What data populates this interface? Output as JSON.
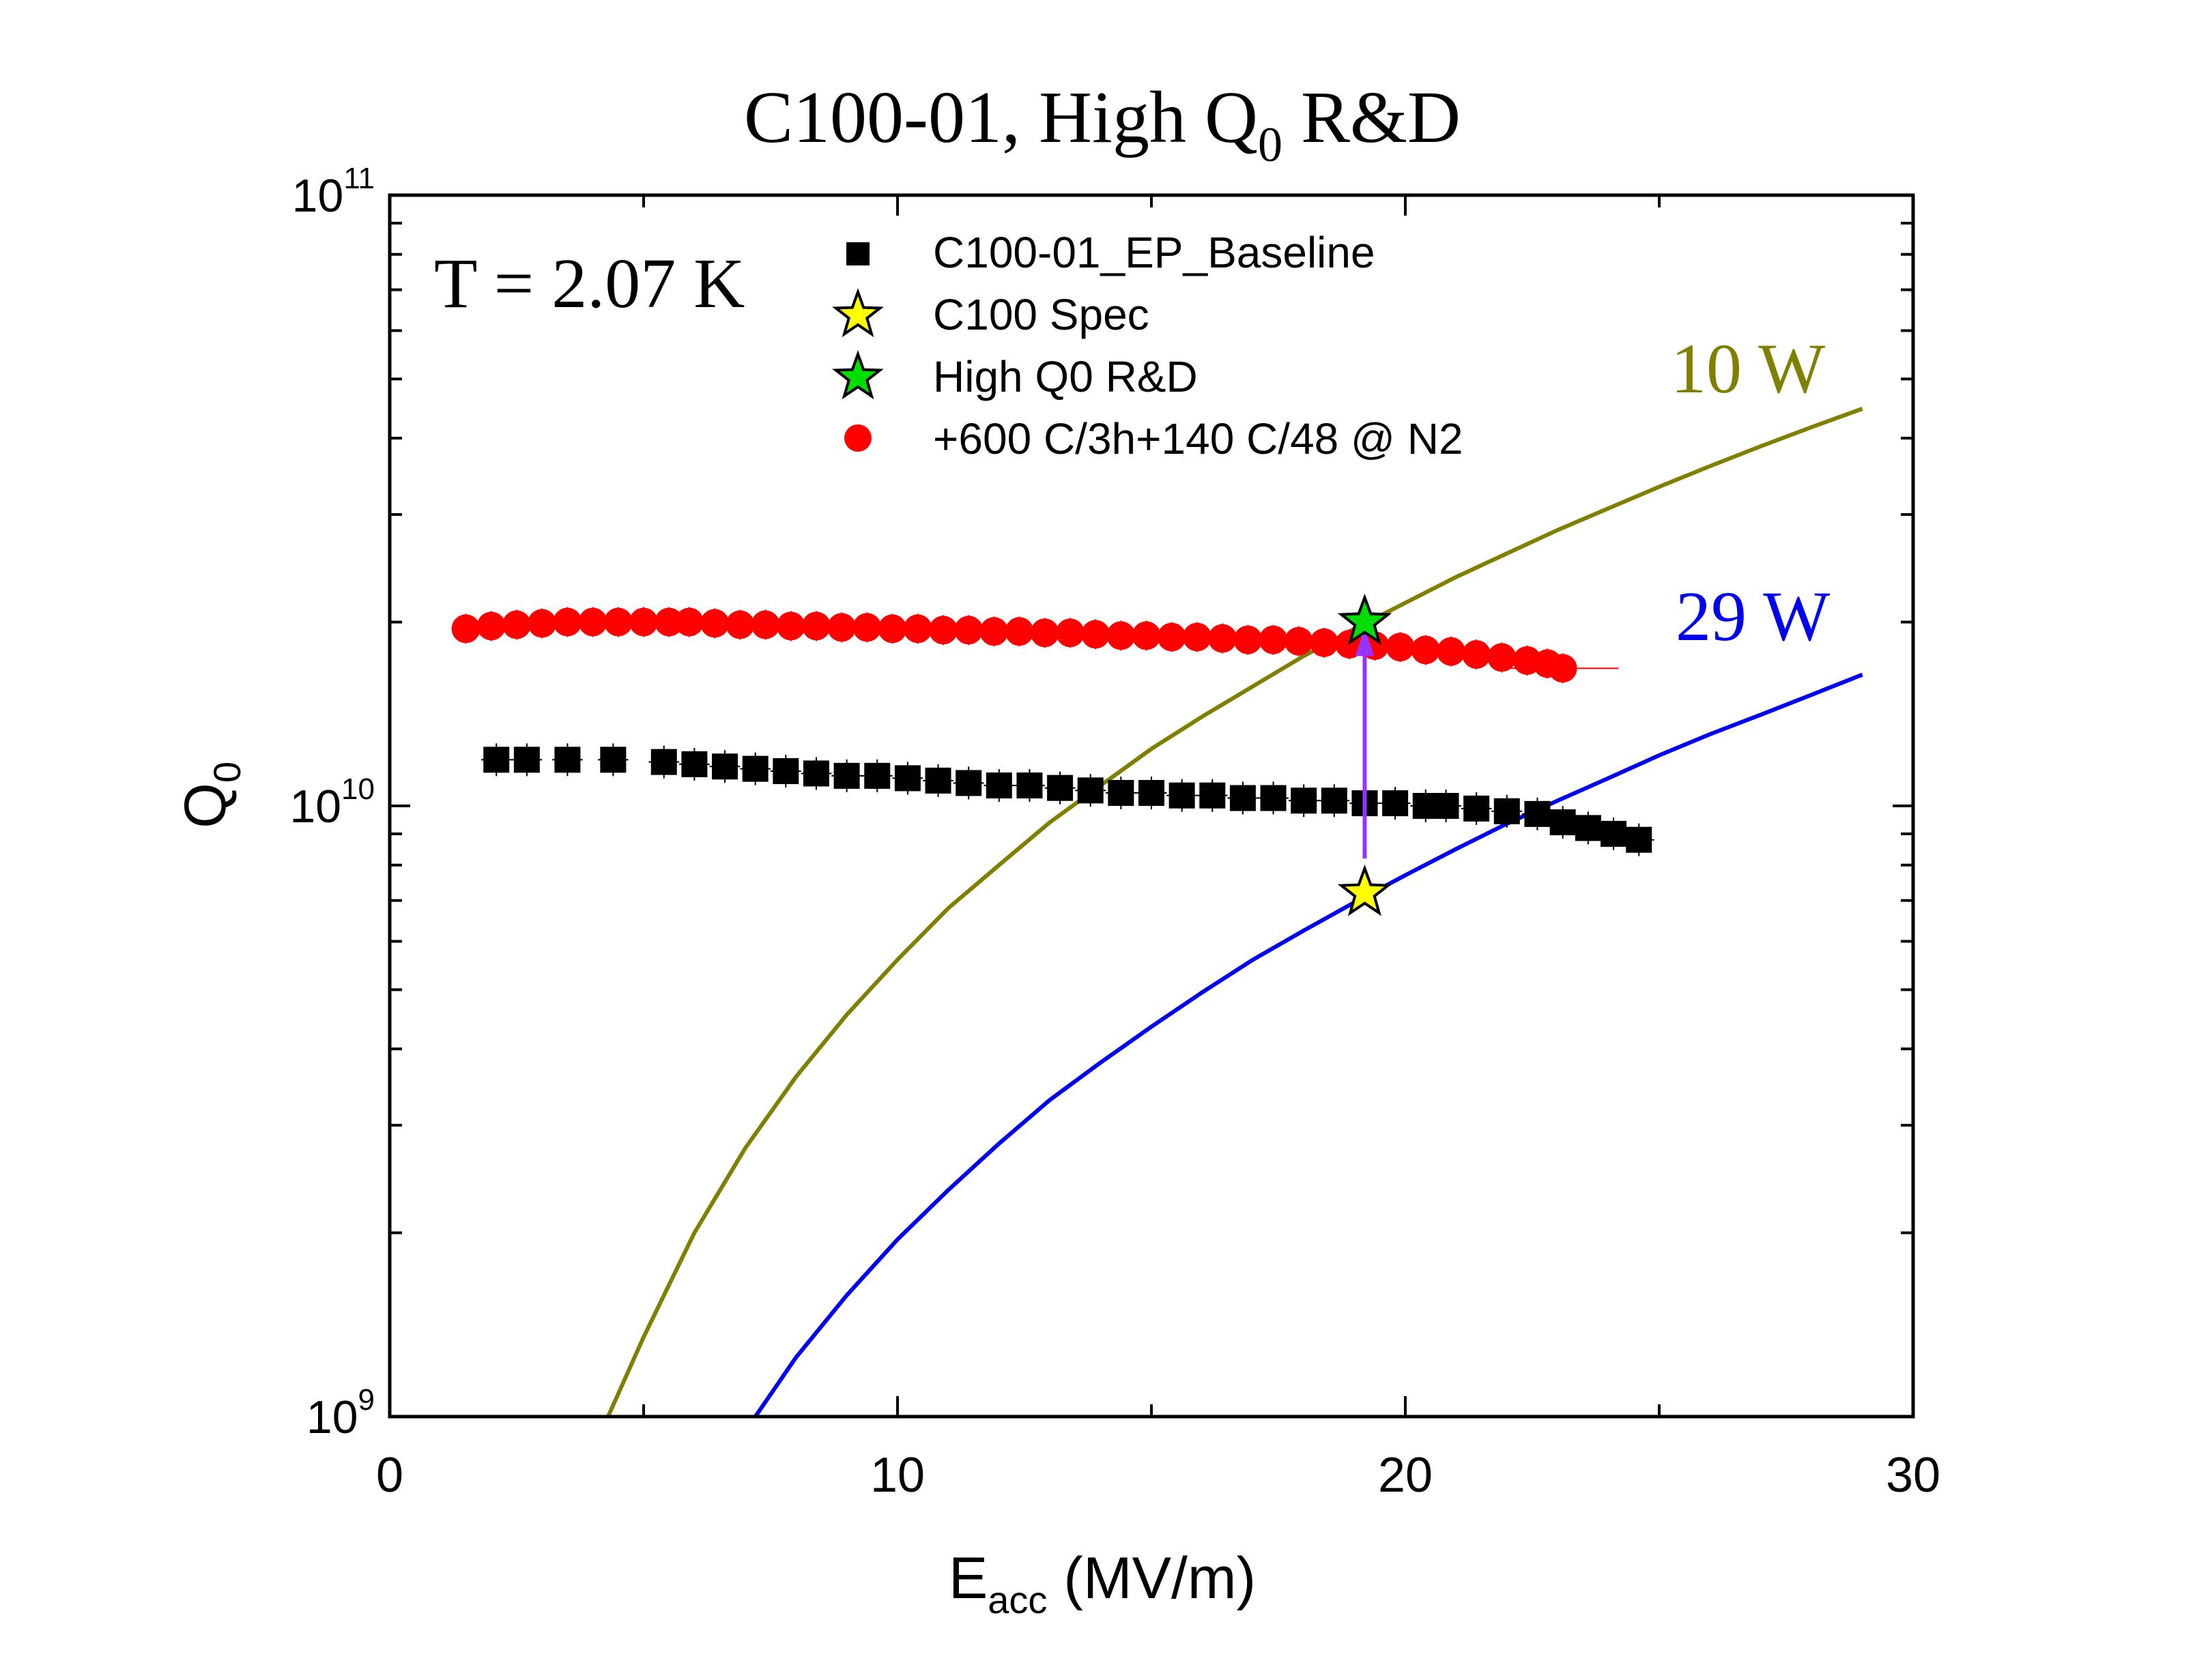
{
  "chart_data": {
    "type": "scatter",
    "title": "C100-01, High Q",
    "title_sub": "0",
    "title_tail": " R&D",
    "annotation": "T = 2.07 K",
    "xlabel_main": "E",
    "xlabel_sub": "acc",
    "xlabel_tail": " (MV/m)",
    "ylabel_main": "Q",
    "ylabel_sub": "0",
    "xlim": [
      0,
      30
    ],
    "ylim": [
      1000000000.0,
      100000000000.0
    ],
    "yscale": "log",
    "x_ticks": [
      "0",
      "10",
      "20",
      "30"
    ],
    "y_ticks": [
      {
        "base": "10",
        "exp": "9",
        "value": 1000000000.0
      },
      {
        "base": "10",
        "exp": "10",
        "value": 10000000000.0
      },
      {
        "base": "10",
        "exp": "11",
        "value": 100000000000.0
      }
    ],
    "legend_position": "top-center",
    "series": [
      {
        "name": "C100-01_EP_Baseline",
        "marker": "square",
        "color": "#000000",
        "x": [
          2.1,
          2.7,
          3.5,
          4.4,
          5.4,
          6.0,
          6.6,
          7.2,
          7.8,
          8.4,
          9.0,
          9.6,
          10.2,
          10.8,
          11.4,
          12.0,
          12.6,
          13.2,
          13.8,
          14.4,
          15.0,
          15.6,
          16.2,
          16.8,
          17.4,
          18.0,
          18.6,
          19.2,
          19.8,
          20.4,
          20.8,
          21.4,
          22.0,
          22.6,
          23.1,
          23.6,
          24.1,
          24.6
        ],
        "y": [
          11900000000.0,
          11900000000.0,
          11900000000.0,
          11900000000.0,
          11800000000.0,
          11700000000.0,
          11600000000.0,
          11500000000.0,
          11400000000.0,
          11300000000.0,
          11200000000.0,
          11200000000.0,
          11100000000.0,
          11000000000.0,
          10900000000.0,
          10800000000.0,
          10800000000.0,
          10700000000.0,
          10600000000.0,
          10500000000.0,
          10500000000.0,
          10400000000.0,
          10400000000.0,
          10300000000.0,
          10300000000.0,
          10200000000.0,
          10200000000.0,
          10100000000.0,
          10100000000.0,
          10000000000.0,
          10000000000.0,
          9900000000.0,
          9800000000.0,
          9700000000.0,
          9400000000.0,
          9200000000.0,
          9000000000.0,
          8800000000.0
        ]
      },
      {
        "name": "C100 Spec",
        "marker": "star",
        "color": "#ffff00",
        "x": [
          19.2
        ],
        "y": [
          7200000000.0
        ]
      },
      {
        "name": "High Q0 R&D",
        "marker": "star",
        "color": "#00dd00",
        "x": [
          19.2
        ],
        "y": [
          20000000000.0
        ]
      },
      {
        "name": "+600 C/3h+140 C/48 @ N2",
        "marker": "circle",
        "color": "#ff0000",
        "x": [
          1.5,
          2.0,
          2.5,
          3.0,
          3.5,
          4.0,
          4.5,
          5.0,
          5.5,
          5.9,
          6.4,
          6.9,
          7.4,
          7.9,
          8.4,
          8.9,
          9.4,
          9.9,
          10.4,
          10.9,
          11.4,
          11.9,
          12.4,
          12.9,
          13.4,
          13.9,
          14.4,
          14.9,
          15.4,
          15.9,
          16.4,
          16.9,
          17.4,
          17.9,
          18.4,
          18.9,
          19.4,
          19.9,
          20.4,
          20.9,
          21.4,
          21.9,
          22.4,
          22.8,
          23.1
        ],
        "y": [
          19500000000.0,
          19700000000.0,
          19800000000.0,
          19900000000.0,
          20000000000.0,
          20000000000.0,
          20000000000.0,
          20000000000.0,
          20000000000.0,
          20000000000.0,
          19900000000.0,
          19800000000.0,
          19800000000.0,
          19700000000.0,
          19700000000.0,
          19600000000.0,
          19600000000.0,
          19500000000.0,
          19500000000.0,
          19400000000.0,
          19400000000.0,
          19300000000.0,
          19300000000.0,
          19200000000.0,
          19200000000.0,
          19100000000.0,
          19000000000.0,
          19000000000.0,
          18900000000.0,
          18900000000.0,
          18800000000.0,
          18700000000.0,
          18700000000.0,
          18600000000.0,
          18500000000.0,
          18400000000.0,
          18300000000.0,
          18200000000.0,
          18000000000.0,
          17900000000.0,
          17700000000.0,
          17500000000.0,
          17300000000.0,
          17100000000.0,
          16800000000.0
        ]
      },
      {
        "name": "10 W",
        "marker": "line",
        "color": "#808000",
        "x": [
          4.3,
          5.0,
          6.0,
          7.0,
          8.0,
          9.0,
          10.0,
          11.0,
          12.0,
          13.0,
          14.0,
          15.0,
          16.0,
          17.0,
          18.0,
          19.0,
          20.0,
          21.0,
          22.0,
          23.0,
          24.0,
          25.0,
          26.0,
          27.0,
          28.0,
          29.0
        ],
        "y": [
          1000000000.0,
          1350000000.0,
          2000000000.0,
          2750000000.0,
          3600000000.0,
          4550000000.0,
          5600000000.0,
          6800000000.0,
          8000000000.0,
          9400000000.0,
          10800000000.0,
          12400000000.0,
          14000000000.0,
          15700000000.0,
          17600000000.0,
          19500000000.0,
          21500000000.0,
          23700000000.0,
          25900000000.0,
          28300000000.0,
          30700000000.0,
          33300000000.0,
          36000000000.0,
          38800000000.0,
          41700000000.0,
          44700000000.0
        ]
      },
      {
        "name": "29 W",
        "marker": "line",
        "color": "#0000ee",
        "x": [
          7.2,
          8.0,
          9.0,
          10.0,
          11.0,
          12.0,
          13.0,
          14.0,
          15.0,
          16.0,
          17.0,
          18.0,
          19.0,
          20.0,
          21.0,
          22.0,
          23.0,
          24.0,
          25.0,
          26.0,
          27.0,
          28.0,
          29.0
        ],
        "y": [
          1000000000.0,
          1250000000.0,
          1580000000.0,
          1950000000.0,
          2350000000.0,
          2800000000.0,
          3300000000.0,
          3800000000.0,
          4350000000.0,
          4950000000.0,
          5600000000.0,
          6250000000.0,
          6950000000.0,
          7700000000.0,
          8500000000.0,
          9350000000.0,
          10200000000.0,
          11100000000.0,
          12100000000.0,
          13100000000.0,
          14100000000.0,
          15200000000.0,
          16400000000.0
        ]
      }
    ],
    "curve_labels": [
      {
        "text": "10 W",
        "color": "#808000"
      },
      {
        "text": "29 W",
        "color": "#0000ee"
      }
    ],
    "arrow": {
      "x": 19.2,
      "y_from": 8200000000.0,
      "y_to": 19500000000.0,
      "color": "#9933ff"
    }
  }
}
